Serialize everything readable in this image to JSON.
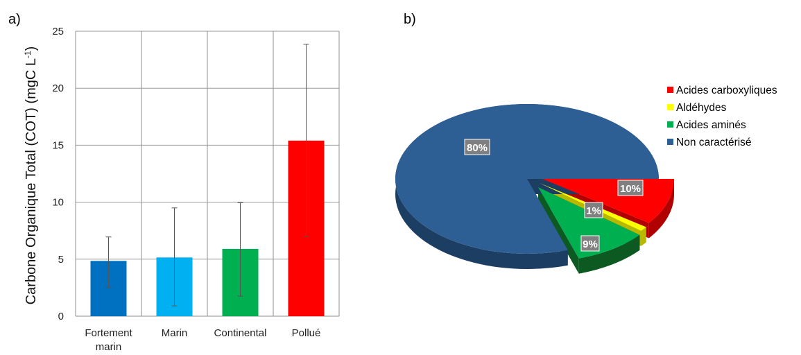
{
  "chart_data": [
    {
      "panel": "a)",
      "type": "bar",
      "categories": [
        "Fortement marin",
        "Marin",
        "Continental",
        "Pollué"
      ],
      "category_lines": [
        [
          "Fortement",
          "marin"
        ],
        [
          "Marin"
        ],
        [
          "Continental"
        ],
        [
          "Pollué"
        ]
      ],
      "values": [
        4.85,
        5.15,
        5.9,
        15.4
      ],
      "error_low": [
        2.5,
        0.9,
        1.75,
        7.0
      ],
      "error_high": [
        6.95,
        9.5,
        9.95,
        23.85
      ],
      "colors": [
        "#0070C0",
        "#00B0F0",
        "#00B050",
        "#FF0000"
      ],
      "ylabel": "Carbone Organique Total (COT) (mgC L",
      "ylabel_sup": "-1",
      "ylabel_end": ")",
      "ylim": [
        0,
        25
      ],
      "yticks": [
        0,
        5,
        10,
        15,
        20,
        25
      ],
      "grid": true
    },
    {
      "panel": "b)",
      "type": "pie",
      "style": "3d-exploded",
      "slices": [
        {
          "name": "Acides carboxyliques",
          "value": 10,
          "label": "10%",
          "color": "#FF0000",
          "side": "#B00000"
        },
        {
          "name": "Aldéhydes",
          "value": 1,
          "label": "1%",
          "color": "#FFFF00",
          "side": "#B8B800"
        },
        {
          "name": "Acides aminés",
          "value": 9,
          "label": "9%",
          "color": "#00B050",
          "side": "#0C5A22"
        },
        {
          "name": "Non caractérisé",
          "value": 80,
          "label": "80%",
          "color": "#2E5F94",
          "side": "#1D3E63"
        }
      ],
      "legend_position": "right"
    }
  ]
}
